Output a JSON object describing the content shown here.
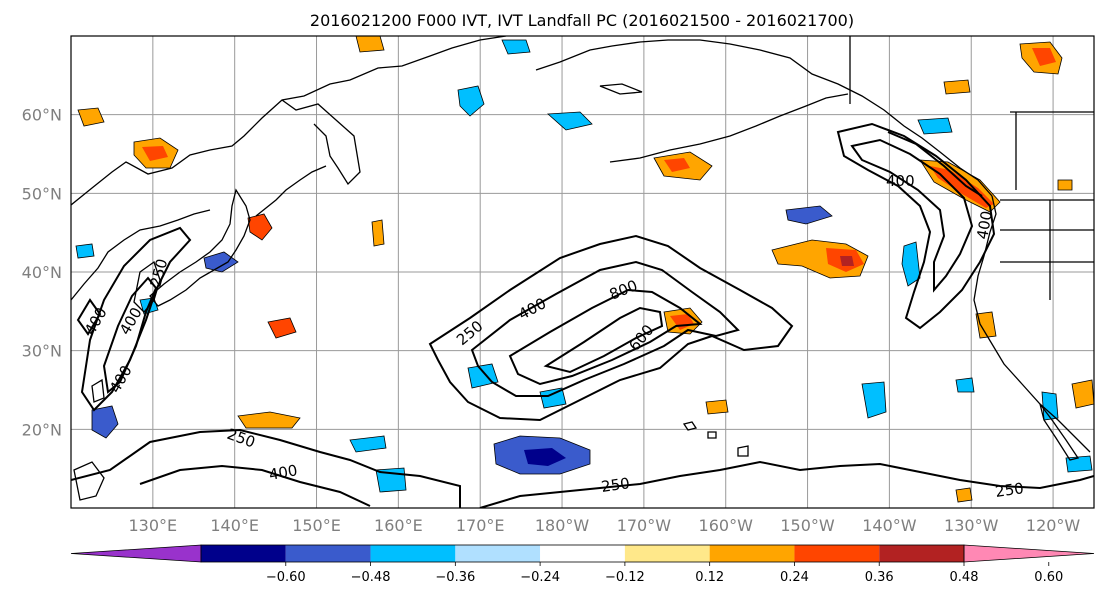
{
  "title": "2016021200 F000 IVT, IVT Landfall PC (2016021500 - 2016021700)",
  "lat_labels": [
    "60°N",
    "50°N",
    "40°N",
    "30°N",
    "20°N"
  ],
  "lon_labels": [
    "130°E",
    "140°E",
    "150°E",
    "160°E",
    "170°E",
    "180°W",
    "170°W",
    "160°W",
    "150°W",
    "140°W",
    "130°W",
    "120°W"
  ],
  "contour_labels": [
    "250",
    "400",
    "800",
    "600",
    "400",
    "250",
    "400",
    "250",
    "250",
    "250",
    "400",
    "400",
    "400",
    "400"
  ],
  "colorbar": {
    "ticks": [
      "−0.60",
      "−0.48",
      "−0.36",
      "−0.24",
      "−0.12",
      "0.12",
      "0.24",
      "0.36",
      "0.48",
      "0.60"
    ],
    "colors": [
      "#9932cc",
      "#00008b",
      "#3a5bcc",
      "#00bfff",
      "#b0e0ff",
      "#ffffff",
      "#ffe88a",
      "#ffa500",
      "#ff4500",
      "#b22222",
      "#ff88b4"
    ]
  },
  "map": {
    "extent": {
      "lon_min": 120,
      "lon_max": 245,
      "lat_min": 10,
      "lat_max": 70
    },
    "ivt_contour_levels": [
      250,
      400,
      600,
      800
    ],
    "colors": {
      "gridline": "#9a9a9a",
      "coastline": "#000000",
      "label_gray": "#7f7f7f"
    }
  }
}
